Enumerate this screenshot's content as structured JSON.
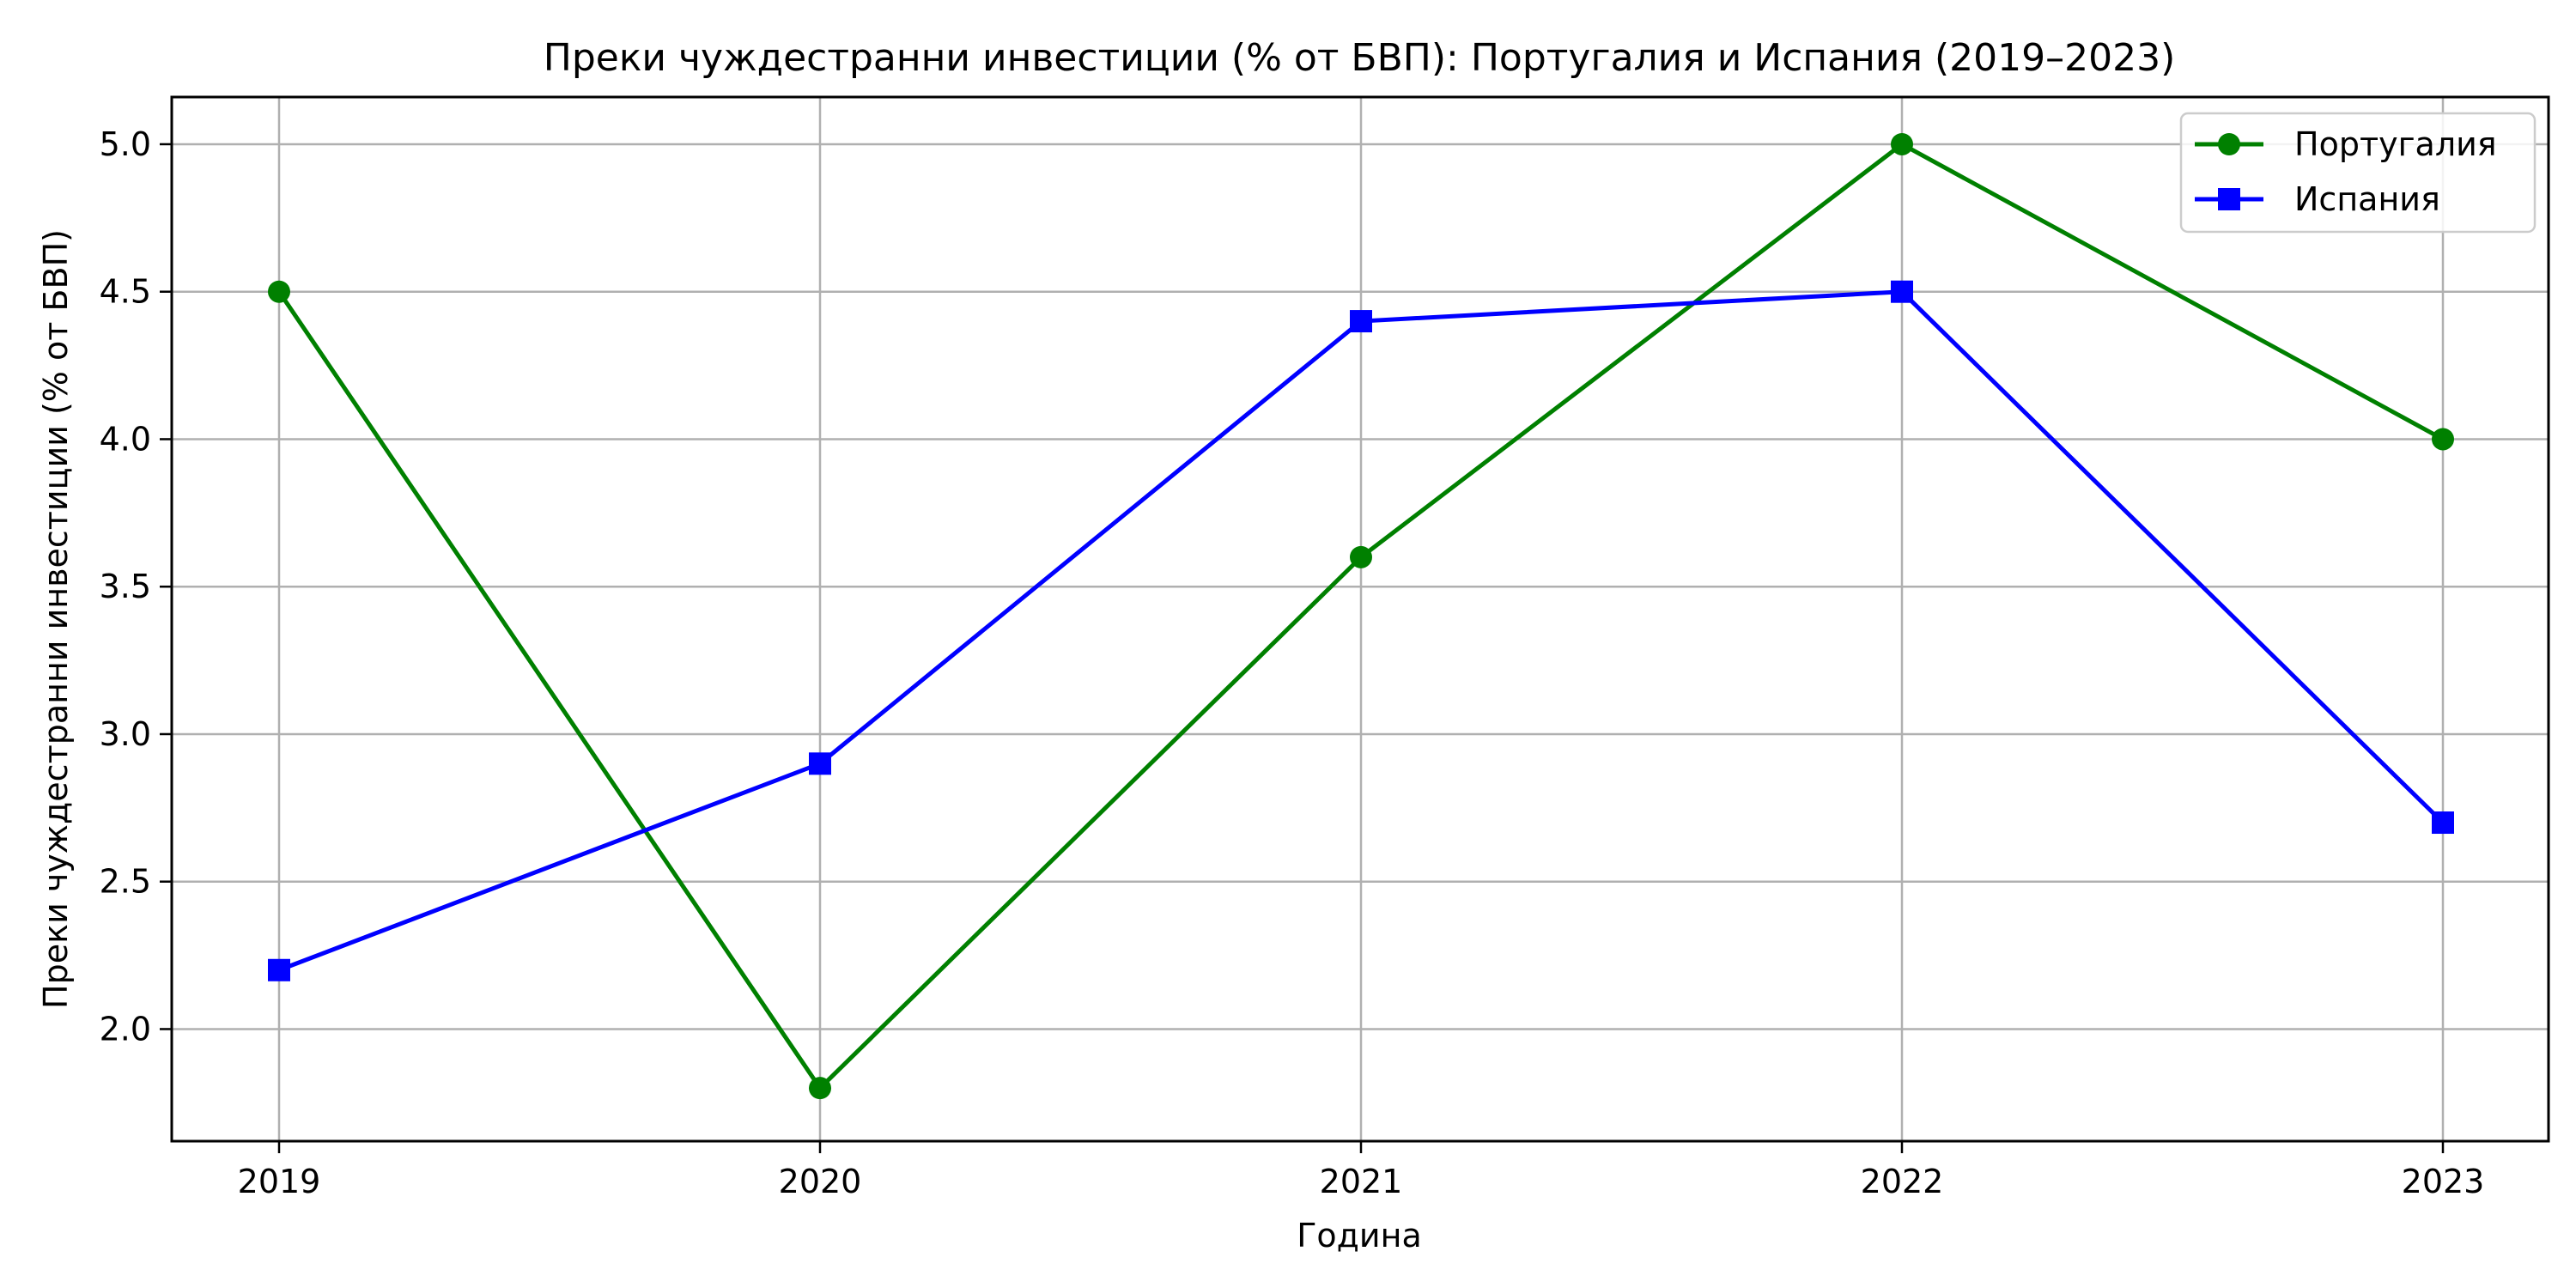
{
  "chart_data": {
    "type": "line",
    "title": "Преки чуждестранни инвестиции (% от БВП): Португалия и Испания (2019–2023)",
    "xlabel": "Година",
    "ylabel": "Преки чуждестранни инвестиции (% от БВП)",
    "categories": [
      "2019",
      "2020",
      "2021",
      "2022",
      "2023"
    ],
    "yticks": [
      "2.0",
      "2.5",
      "3.0",
      "3.5",
      "4.0",
      "4.5",
      "5.0"
    ],
    "ylim": [
      1.62,
      5.16
    ],
    "grid": true,
    "legend_position": "top-right",
    "series": [
      {
        "name": "Португалия",
        "values": [
          4.5,
          1.8,
          3.6,
          5.0,
          4.0
        ],
        "color": "#008000",
        "marker": "circle"
      },
      {
        "name": "Испания",
        "values": [
          2.2,
          2.9,
          4.4,
          4.5,
          2.7
        ],
        "color": "#0000ff",
        "marker": "square"
      }
    ]
  }
}
